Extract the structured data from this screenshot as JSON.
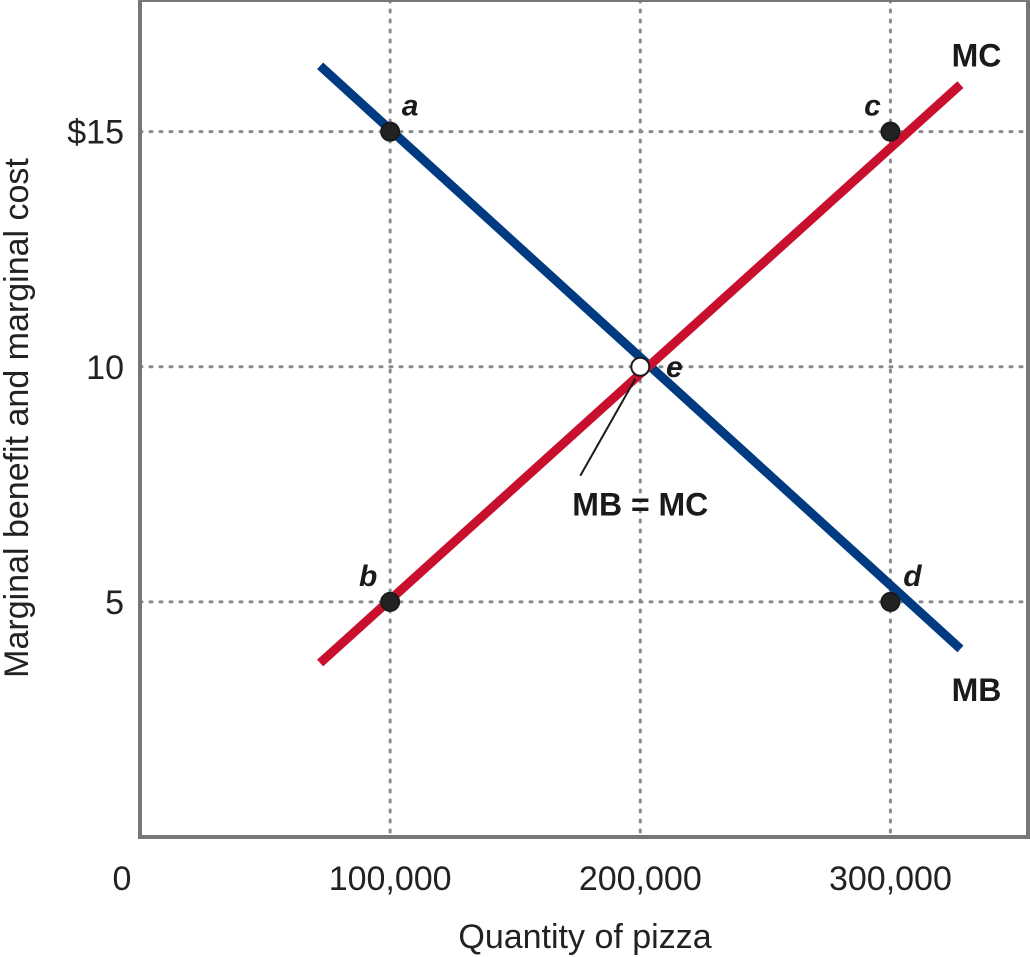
{
  "chart_data": {
    "type": "line",
    "xlabel": "Quantity of pizza",
    "ylabel": "Marginal benefit and marginal cost",
    "xlim": [
      0,
      355000
    ],
    "ylim": [
      0,
      17.8
    ],
    "x_ticks": [
      {
        "value": 0,
        "label": "0"
      },
      {
        "value": 100000,
        "label": "100,000"
      },
      {
        "value": 200000,
        "label": "200,000"
      },
      {
        "value": 300000,
        "label": "300,000"
      }
    ],
    "y_ticks": [
      {
        "value": 5,
        "label": "5"
      },
      {
        "value": 10,
        "label": "10"
      },
      {
        "value": 15,
        "label": "$15"
      }
    ],
    "grid": {
      "x": [
        100000,
        200000,
        300000
      ],
      "y": [
        5,
        10,
        15
      ],
      "style": "dotted"
    },
    "series": [
      {
        "name": "MB",
        "color": "#003a80",
        "points": [
          [
            72000,
            16.4
          ],
          [
            328000,
            4.0
          ]
        ]
      },
      {
        "name": "MC",
        "color": "#c8102e",
        "points": [
          [
            72000,
            3.7
          ],
          [
            328000,
            16.0
          ]
        ]
      }
    ],
    "points": [
      {
        "label": "a",
        "x": 100000,
        "y": 15,
        "fill": "#222222"
      },
      {
        "label": "b",
        "x": 100000,
        "y": 5,
        "fill": "#222222"
      },
      {
        "label": "c",
        "x": 300000,
        "y": 15,
        "fill": "#222222"
      },
      {
        "label": "d",
        "x": 300000,
        "y": 5,
        "fill": "#222222"
      },
      {
        "label": "e",
        "x": 200000,
        "y": 10,
        "fill": "#ffffff"
      }
    ],
    "annotations": [
      {
        "text": "MB = MC",
        "x": 200000,
        "y": 7.3,
        "target_x": 200000,
        "target_y": 10
      }
    ]
  }
}
